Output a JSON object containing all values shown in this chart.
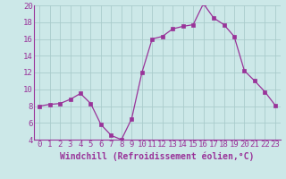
{
  "x": [
    0,
    1,
    2,
    3,
    4,
    5,
    6,
    7,
    8,
    9,
    10,
    11,
    12,
    13,
    14,
    15,
    16,
    17,
    18,
    19,
    20,
    21,
    22,
    23
  ],
  "y": [
    8.0,
    8.2,
    8.3,
    8.8,
    9.5,
    8.3,
    5.8,
    4.5,
    4.0,
    6.5,
    12.0,
    16.0,
    16.3,
    17.2,
    17.5,
    17.7,
    20.2,
    18.5,
    17.7,
    16.3,
    12.2,
    11.0,
    9.7,
    8.1
  ],
  "xlim": [
    -0.5,
    23.5
  ],
  "ylim": [
    4,
    20
  ],
  "yticks": [
    4,
    6,
    8,
    10,
    12,
    14,
    16,
    18,
    20
  ],
  "xticks": [
    0,
    1,
    2,
    3,
    4,
    5,
    6,
    7,
    8,
    9,
    10,
    11,
    12,
    13,
    14,
    15,
    16,
    17,
    18,
    19,
    20,
    21,
    22,
    23
  ],
  "xlabel": "Windchill (Refroidissement éolien,°C)",
  "line_color": "#993399",
  "marker_color": "#993399",
  "bg_color": "#cce8e8",
  "grid_color": "#aacccc",
  "spine_color": "#993399",
  "tick_label_color": "#993399",
  "axis_label_color": "#993399",
  "font_size_ticks": 6.5,
  "font_size_xlabel": 7.0
}
